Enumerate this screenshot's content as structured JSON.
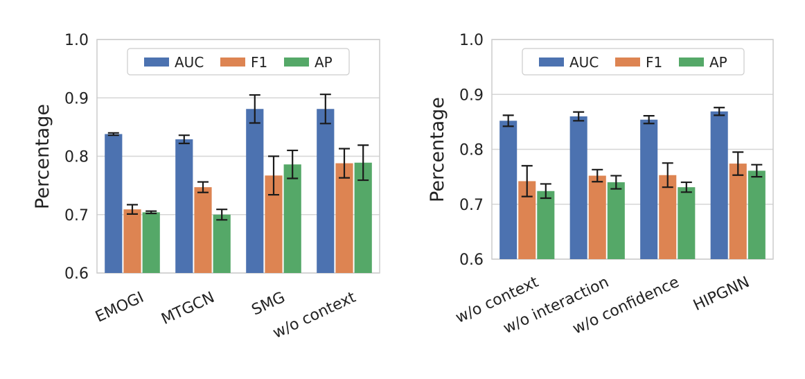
{
  "colors": {
    "AUC": "#4c72b0",
    "F1": "#dd8452",
    "AP": "#55a868",
    "grid": "#d5d5d5",
    "frame": "#cccccc",
    "errorbar": "#1a1a1a"
  },
  "chart_data": [
    {
      "type": "bar",
      "title": "",
      "xlabel": "",
      "ylabel": "Percentage",
      "ylim": [
        0.6,
        1.0
      ],
      "yticks": [
        "0.6",
        "0.7",
        "0.8",
        "0.9",
        "1.0"
      ],
      "grid": "y",
      "legend": "top-center",
      "categories": [
        "EMOGI",
        "MTGCN",
        "SMG",
        "w/o context"
      ],
      "series": [
        {
          "name": "AUC",
          "values": [
            0.838,
            0.829,
            0.881,
            0.881
          ],
          "errors": [
            0.002,
            0.007,
            0.024,
            0.025
          ]
        },
        {
          "name": "F1",
          "values": [
            0.709,
            0.747,
            0.767,
            0.788
          ],
          "errors": [
            0.008,
            0.009,
            0.033,
            0.025
          ]
        },
        {
          "name": "AP",
          "values": [
            0.704,
            0.7,
            0.786,
            0.789
          ],
          "errors": [
            0.002,
            0.009,
            0.024,
            0.03
          ]
        }
      ]
    },
    {
      "type": "bar",
      "title": "",
      "xlabel": "",
      "ylabel": "Percentage",
      "ylim": [
        0.6,
        1.0
      ],
      "yticks": [
        "0.6",
        "0.7",
        "0.8",
        "0.9",
        "1.0"
      ],
      "grid": "y",
      "legend": "top-center",
      "categories": [
        "w/o context",
        "w/o interaction",
        "w/o confidence",
        "HIPGNN"
      ],
      "series": [
        {
          "name": "AUC",
          "values": [
            0.852,
            0.86,
            0.854,
            0.869
          ],
          "errors": [
            0.01,
            0.008,
            0.007,
            0.007
          ]
        },
        {
          "name": "F1",
          "values": [
            0.742,
            0.752,
            0.753,
            0.774
          ],
          "errors": [
            0.028,
            0.011,
            0.022,
            0.021
          ]
        },
        {
          "name": "AP",
          "values": [
            0.724,
            0.74,
            0.731,
            0.761
          ],
          "errors": [
            0.013,
            0.012,
            0.009,
            0.011
          ]
        }
      ]
    }
  ]
}
